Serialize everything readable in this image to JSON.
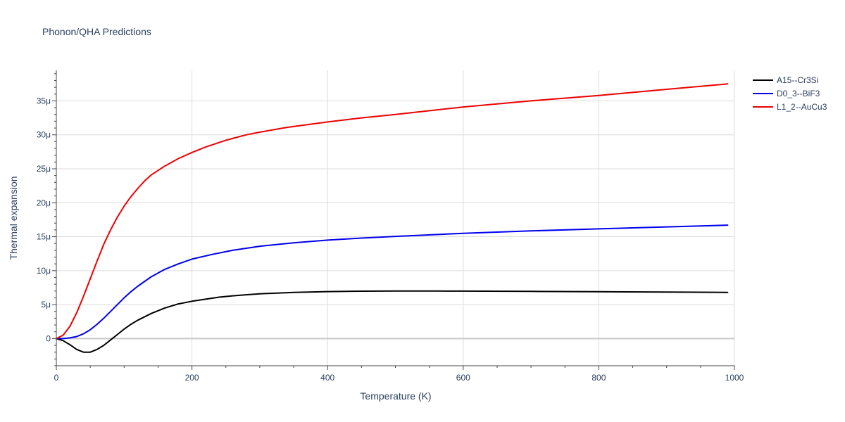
{
  "chart_data": {
    "type": "line",
    "title": "Phonon/QHA Predictions",
    "xlabel": "Temperature (K)",
    "ylabel": "Thermal expansion",
    "xlim": [
      0,
      1000
    ],
    "ylim": [
      -4e-06,
      3.95e-05
    ],
    "x_ticks": [
      {
        "value": 0,
        "label": "0"
      },
      {
        "value": 200,
        "label": "200"
      },
      {
        "value": 400,
        "label": "400"
      },
      {
        "value": 600,
        "label": "600"
      },
      {
        "value": 800,
        "label": "800"
      },
      {
        "value": 1000,
        "label": "1000"
      }
    ],
    "y_ticks": [
      {
        "value": 0,
        "label": "0"
      },
      {
        "value": 5e-06,
        "label": "5μ"
      },
      {
        "value": 1e-05,
        "label": "10μ"
      },
      {
        "value": 1.5e-05,
        "label": "15μ"
      },
      {
        "value": 2e-05,
        "label": "20μ"
      },
      {
        "value": 2.5e-05,
        "label": "25μ"
      },
      {
        "value": 3e-05,
        "label": "30μ"
      },
      {
        "value": 3.5e-05,
        "label": "35μ"
      }
    ],
    "grid": true,
    "legend_position": "top-right",
    "series": [
      {
        "name": "A15--Cr3Si",
        "color": "#000000",
        "x": [
          0,
          10,
          20,
          30,
          40,
          50,
          60,
          70,
          80,
          90,
          100,
          110,
          120,
          140,
          160,
          180,
          200,
          220,
          240,
          260,
          280,
          300,
          350,
          400,
          450,
          500,
          560,
          600,
          700,
          800,
          900,
          990
        ],
        "y": [
          0,
          -3e-07,
          -9e-07,
          -1.6e-06,
          -2e-06,
          -2e-06,
          -1.6e-06,
          -1e-06,
          -2e-07,
          6e-07,
          1.4e-06,
          2.1e-06,
          2.7e-06,
          3.7e-06,
          4.5e-06,
          5.1e-06,
          5.5e-06,
          5.8e-06,
          6.1e-06,
          6.3e-06,
          6.45e-06,
          6.6e-06,
          6.8e-06,
          6.92e-06,
          6.98e-06,
          7e-06,
          7e-06,
          6.99e-06,
          6.95e-06,
          6.9e-06,
          6.85e-06,
          6.8e-06
        ]
      },
      {
        "name": "D0_3--BiF3",
        "color": "#0000ee",
        "x": [
          0,
          10,
          20,
          30,
          40,
          50,
          60,
          70,
          80,
          90,
          100,
          110,
          120,
          140,
          160,
          180,
          200,
          230,
          260,
          300,
          350,
          400,
          450,
          500,
          600,
          700,
          800,
          900,
          990
        ],
        "y": [
          0,
          0,
          1e-07,
          3e-07,
          7e-07,
          1.3e-06,
          2.1e-06,
          3e-06,
          4e-06,
          5e-06,
          6e-06,
          6.9e-06,
          7.7e-06,
          9.1e-06,
          1.02e-05,
          1.1e-05,
          1.17e-05,
          1.24e-05,
          1.3e-05,
          1.36e-05,
          1.41e-05,
          1.45e-05,
          1.48e-05,
          1.505e-05,
          1.55e-05,
          1.585e-05,
          1.615e-05,
          1.645e-05,
          1.67e-05
        ]
      },
      {
        "name": "L1_2--AuCu3",
        "color": "#ee0000",
        "x": [
          0,
          10,
          20,
          30,
          40,
          50,
          60,
          70,
          80,
          90,
          100,
          110,
          120,
          130,
          140,
          160,
          180,
          200,
          220,
          250,
          280,
          300,
          340,
          400,
          450,
          500,
          600,
          700,
          800,
          900,
          990
        ],
        "y": [
          0,
          5e-07,
          1.8e-06,
          3.8e-06,
          6.2e-06,
          8.8e-06,
          1.14e-05,
          1.39e-05,
          1.6e-05,
          1.79e-05,
          1.95e-05,
          2.09e-05,
          2.21e-05,
          2.32e-05,
          2.41e-05,
          2.54e-05,
          2.65e-05,
          2.74e-05,
          2.82e-05,
          2.92e-05,
          3e-05,
          3.04e-05,
          3.11e-05,
          3.19e-05,
          3.25e-05,
          3.3e-05,
          3.41e-05,
          3.5e-05,
          3.58e-05,
          3.67e-05,
          3.75e-05
        ]
      }
    ]
  }
}
